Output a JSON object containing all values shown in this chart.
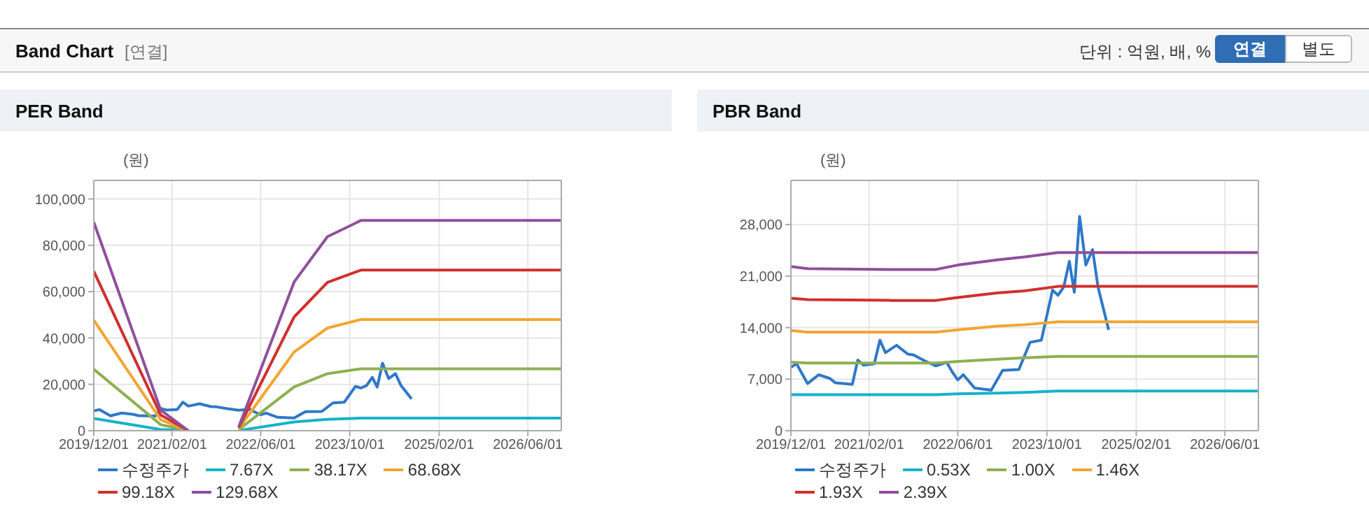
{
  "chart_data": [
    {
      "type": "other",
      "title": "Band Chart",
      "annotations": [
        "[연결]",
        "단위 : 억원, 배, %",
        "연결",
        "별도"
      ]
    },
    {
      "type": "line",
      "title": "PER Band",
      "ylabel": "(원)",
      "xlim": [
        "2019-12-01",
        "2026-12-01"
      ],
      "xticks": [
        {
          "value": "2019-12-01",
          "label": "2019/12/01"
        },
        {
          "value": "2021-02-01",
          "label": "2021/02/01"
        },
        {
          "value": "2022-06-01",
          "label": "2022/06/01"
        },
        {
          "value": "2023-10-01",
          "label": "2023/10/01"
        },
        {
          "value": "2025-02-01",
          "label": "2025/02/01"
        },
        {
          "value": "2026-06-01",
          "label": "2026/06/01"
        }
      ],
      "ylim": [
        0,
        108000
      ],
      "yticks": [
        0,
        {
          "value": 20000,
          "label": "20,000"
        },
        {
          "value": 40000,
          "label": "40,000"
        },
        {
          "value": 60000,
          "label": "60,000"
        },
        {
          "value": 80000,
          "label": "80,000"
        },
        {
          "value": 100000,
          "label": "100,000"
        }
      ],
      "grid": true,
      "legend": "bottom",
      "marker": "none",
      "line_style": "solid",
      "series": [
        {
          "name": "수정주가",
          "color": "#2f78c8",
          "x": [
            "2019-12",
            "2020-01",
            "2020-03",
            "2020-05",
            "2020-07",
            "2020-08",
            "2020-11",
            "2020-12",
            "2021-01",
            "2021-03",
            "2021-04",
            "2021-05",
            "2021-07",
            "2021-09",
            "2021-10",
            "2021-12",
            "2022-02",
            "2022-04",
            "2022-05",
            "2022-06",
            "2022-07",
            "2022-09",
            "2022-11",
            "2022-12",
            "2023-02",
            "2023-05",
            "2023-07",
            "2023-09",
            "2023-11",
            "2023-12",
            "2024-01",
            "2024-02-01",
            "2024-02-28",
            "2024-03-28",
            "2024-05-01",
            "2024-06-07",
            "2024-07-07",
            "2024-09-03"
          ],
          "values": [
            8600,
            9100,
            6400,
            7600,
            7100,
            6500,
            6300,
            9600,
            8900,
            9100,
            12300,
            10600,
            11600,
            10400,
            10300,
            9500,
            8800,
            9300,
            8000,
            6900,
            7600,
            5800,
            5600,
            5500,
            8200,
            8300,
            12000,
            12300,
            19100,
            18400,
            19500,
            23000,
            18800,
            29100,
            22500,
            24600,
            19500,
            13700
          ]
        },
        {
          "name": "7.67X",
          "color": "#17b2c8",
          "x": [
            "2019-12",
            "2020-12",
            "2021-05",
            "2021-09",
            "2022-02",
            "2022-12",
            "2023-06",
            "2023-12",
            "2026-12"
          ],
          "values": [
            5300,
            500,
            0,
            null,
            100,
            3800,
            4900,
            5400,
            5400
          ]
        },
        {
          "name": "38.17X",
          "color": "#8db050",
          "x": [
            "2019-12",
            "2020-12",
            "2021-05",
            "2021-09",
            "2022-02",
            "2022-12",
            "2023-06",
            "2023-12",
            "2026-12"
          ],
          "values": [
            26500,
            2600,
            0,
            null,
            500,
            18900,
            24600,
            26700,
            26700
          ]
        },
        {
          "name": "68.68X",
          "color": "#f2a531",
          "x": [
            "2019-12",
            "2020-12",
            "2021-05",
            "2021-09",
            "2022-02",
            "2022-12",
            "2023-06",
            "2023-12",
            "2026-12"
          ],
          "values": [
            47700,
            4700,
            0,
            null,
            900,
            34000,
            44300,
            48000,
            48000
          ]
        },
        {
          "name": "99.18X",
          "color": "#d0302e",
          "x": [
            "2019-12",
            "2020-12",
            "2021-05",
            "2021-09",
            "2022-02",
            "2022-12",
            "2023-06",
            "2023-12",
            "2026-12"
          ],
          "values": [
            68800,
            6800,
            0,
            null,
            1300,
            49100,
            64000,
            69300,
            69300
          ]
        },
        {
          "name": "129.68X",
          "color": "#8e509b",
          "x": [
            "2019-12",
            "2020-12",
            "2021-05",
            "2021-09",
            "2022-02",
            "2022-12",
            "2023-06",
            "2023-12",
            "2026-12"
          ],
          "values": [
            90000,
            8900,
            0,
            null,
            1700,
            64200,
            83700,
            90700,
            90700
          ]
        }
      ]
    },
    {
      "type": "line",
      "title": "PBR Band",
      "ylabel": "(원)",
      "xlim": [
        "2019-12-01",
        "2026-12-01"
      ],
      "xticks": [
        {
          "value": "2019-12-01",
          "label": "2019/12/01"
        },
        {
          "value": "2021-02-01",
          "label": "2021/02/01"
        },
        {
          "value": "2022-06-01",
          "label": "2022/06/01"
        },
        {
          "value": "2023-10-01",
          "label": "2023/10/01"
        },
        {
          "value": "2025-02-01",
          "label": "2025/02/01"
        },
        {
          "value": "2026-06-01",
          "label": "2026/06/01"
        }
      ],
      "ylim": [
        0,
        34000
      ],
      "yticks": [
        0,
        {
          "value": 7000,
          "label": "7,000"
        },
        {
          "value": 14000,
          "label": "14,000"
        },
        {
          "value": 21000,
          "label": "21,000"
        },
        {
          "value": 28000,
          "label": "28,000"
        }
      ],
      "grid": true,
      "legend": "bottom",
      "marker": "none",
      "line_style": "solid",
      "series": [
        {
          "name": "수정주가",
          "color": "#2f78c8",
          "x": [
            "2019-12",
            "2020-01",
            "2020-03",
            "2020-05",
            "2020-07",
            "2020-08",
            "2020-11",
            "2020-12",
            "2021-01",
            "2021-03",
            "2021-04",
            "2021-05",
            "2021-07",
            "2021-09",
            "2021-10",
            "2021-12",
            "2022-02",
            "2022-04",
            "2022-05",
            "2022-06",
            "2022-07",
            "2022-09",
            "2022-11",
            "2022-12",
            "2023-02",
            "2023-05",
            "2023-07",
            "2023-09",
            "2023-11",
            "2023-12",
            "2024-01",
            "2024-02-01",
            "2024-02-28",
            "2024-03-28",
            "2024-05-01",
            "2024-06-07",
            "2024-07-07",
            "2024-09-03"
          ],
          "values": [
            8600,
            9100,
            6400,
            7600,
            7100,
            6500,
            6300,
            9600,
            8900,
            9100,
            12300,
            10600,
            11600,
            10400,
            10300,
            9500,
            8800,
            9300,
            8000,
            6900,
            7600,
            5800,
            5600,
            5500,
            8200,
            8300,
            12000,
            12300,
            19100,
            18400,
            19500,
            23000,
            18800,
            29100,
            22500,
            24600,
            19500,
            13700
          ]
        },
        {
          "name": "0.53X",
          "color": "#17b2c8",
          "x": [
            "2019-12",
            "2020-03",
            "2021-06",
            "2022-02",
            "2022-06",
            "2023-01",
            "2023-06",
            "2023-12",
            "2026-12"
          ],
          "values": [
            4900,
            4900,
            4900,
            4900,
            5000,
            5100,
            5200,
            5400,
            5400
          ]
        },
        {
          "name": "1.00X",
          "color": "#8db050",
          "x": [
            "2019-12",
            "2020-03",
            "2021-06",
            "2022-02",
            "2022-06",
            "2023-01",
            "2023-06",
            "2023-12",
            "2026-12"
          ],
          "values": [
            9300,
            9200,
            9200,
            9200,
            9400,
            9700,
            9900,
            10100,
            10100
          ]
        },
        {
          "name": "1.46X",
          "color": "#f2a531",
          "x": [
            "2019-12",
            "2020-03",
            "2021-06",
            "2022-02",
            "2022-06",
            "2023-01",
            "2023-06",
            "2023-12",
            "2026-12"
          ],
          "values": [
            13600,
            13400,
            13400,
            13400,
            13700,
            14200,
            14400,
            14800,
            14800
          ]
        },
        {
          "name": "1.93X",
          "color": "#d0302e",
          "x": [
            "2019-12",
            "2020-03",
            "2021-06",
            "2022-02",
            "2022-06",
            "2023-01",
            "2023-06",
            "2023-12",
            "2026-12"
          ],
          "values": [
            18000,
            17800,
            17700,
            17700,
            18100,
            18700,
            19000,
            19600,
            19600
          ]
        },
        {
          "name": "2.39X",
          "color": "#8e509b",
          "x": [
            "2019-12",
            "2020-03",
            "2021-06",
            "2022-02",
            "2022-06",
            "2023-01",
            "2023-06",
            "2023-12",
            "2026-12"
          ],
          "values": [
            22300,
            22000,
            21900,
            21900,
            22500,
            23200,
            23600,
            24200,
            24200
          ]
        }
      ]
    }
  ]
}
